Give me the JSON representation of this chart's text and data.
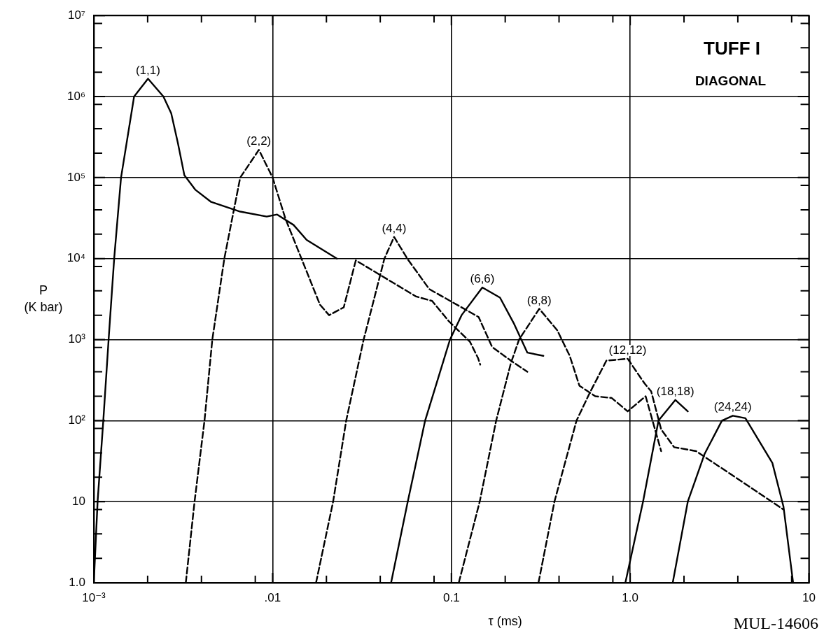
{
  "chart_data": {
    "type": "line",
    "title": "TUFF I",
    "subtitle": "DIAGONAL",
    "xlabel": "τ (ms)",
    "ylabel": "P (K bar)",
    "annotations": [
      "MUL-14606"
    ],
    "log": "xy",
    "grid": true,
    "legend": false,
    "marker": "none",
    "xlim": [
      0.001,
      10
    ],
    "ylim": [
      1,
      10000000
    ],
    "xticks": [
      {
        "value": 0.001,
        "label": "10⁻³"
      },
      {
        "value": 0.002,
        "label": null
      },
      {
        "value": 0.004,
        "label": null
      },
      {
        "value": 0.008,
        "label": null
      },
      {
        "value": 0.01,
        "label": ".01"
      },
      {
        "value": 0.02,
        "label": null
      },
      {
        "value": 0.04,
        "label": null
      },
      {
        "value": 0.08,
        "label": null
      },
      0.1,
      {
        "value": 0.2,
        "label": null
      },
      {
        "value": 0.4,
        "label": null
      },
      {
        "value": 0.8,
        "label": null
      },
      {
        "value": 1,
        "label": "1.0"
      },
      {
        "value": 2,
        "label": null
      },
      {
        "value": 4,
        "label": null
      },
      {
        "value": 8,
        "label": null
      },
      10
    ],
    "yticks": [
      {
        "value": 1,
        "label": "1.0"
      },
      {
        "value": 2,
        "label": null
      },
      {
        "value": 4,
        "label": null
      },
      {
        "value": 8,
        "label": null
      },
      10,
      {
        "value": 20,
        "label": null
      },
      {
        "value": 40,
        "label": null
      },
      {
        "value": 80,
        "label": null
      },
      {
        "value": 100,
        "label": "10²"
      },
      {
        "value": 200,
        "label": null
      },
      {
        "value": 400,
        "label": null
      },
      {
        "value": 800,
        "label": null
      },
      {
        "value": 1000,
        "label": "10³"
      },
      {
        "value": 2000,
        "label": null
      },
      {
        "value": 4000,
        "label": null
      },
      {
        "value": 8000,
        "label": null
      },
      {
        "value": 10000,
        "label": "10⁴"
      },
      {
        "value": 20000,
        "label": null
      },
      {
        "value": 40000,
        "label": null
      },
      {
        "value": 80000,
        "label": null
      },
      {
        "value": 100000,
        "label": "10⁵"
      },
      {
        "value": 200000,
        "label": null
      },
      {
        "value": 400000,
        "label": null
      },
      {
        "value": 800000,
        "label": null
      },
      {
        "value": 1000000,
        "label": "10⁶"
      },
      {
        "value": 2000000,
        "label": null
      },
      {
        "value": 4000000,
        "label": null
      },
      {
        "value": 8000000,
        "label": null
      },
      {
        "value": 10000000,
        "label": "10⁷"
      }
    ],
    "series": [
      {
        "name": "(1,1)",
        "color": "#000000",
        "line_style": "solid",
        "x": [
          0.001,
          0.00105,
          0.00113,
          0.00121,
          0.0013,
          0.00142,
          0.00168,
          0.00201,
          0.00245,
          0.00271,
          0.00295,
          0.00321,
          0.00369,
          0.00453,
          0.00659,
          0.00927,
          0.0106,
          0.0131,
          0.0155,
          0.0229
        ],
        "values": [
          1,
          10,
          100,
          1000,
          10000,
          100000,
          1000000,
          1660000,
          1000000,
          620000,
          270000,
          107000,
          71000,
          50000,
          38000,
          33000,
          35000,
          26000,
          17000,
          10000
        ]
      },
      {
        "name": "(2,2)",
        "color": "#000000",
        "line_style": "dashed",
        "x": [
          0.00327,
          0.00366,
          0.00416,
          0.0046,
          0.00537,
          0.00659,
          0.00838,
          0.01,
          0.0118,
          0.0145,
          0.0184,
          0.0207,
          0.025,
          0.0292,
          0.0635,
          0.078,
          0.0964,
          0.127,
          0.141,
          0.145
        ],
        "values": [
          1,
          10,
          100,
          1000,
          10000,
          100000,
          220000,
          100000,
          31000,
          10000,
          2700,
          2000,
          2500,
          9500,
          3400,
          3000,
          1700,
          940,
          590,
          490
        ]
      },
      {
        "name": "(4,4)",
        "color": "#000000",
        "line_style": "dashed",
        "x": [
          0.0175,
          0.0218,
          0.0258,
          0.0323,
          0.0422,
          0.0478,
          0.057,
          0.0752,
          0.142,
          0.169,
          0.215,
          0.266
        ],
        "values": [
          1,
          10,
          100,
          1000,
          10000,
          18500,
          9800,
          4200,
          1900,
          810,
          550,
          400
        ]
      },
      {
        "name": "(6,6)",
        "color": "#000000",
        "line_style": "solid",
        "x": [
          0.046,
          0.057,
          0.0713,
          0.0982,
          0.114,
          0.149,
          0.187,
          0.223,
          0.266,
          0.327
        ],
        "values": [
          1,
          10,
          100,
          1000,
          2000,
          4400,
          3300,
          1600,
          690,
          630
        ]
      },
      {
        "name": "(8,8)",
        "color": "#000000",
        "line_style": "dashed",
        "x": [
          0.11,
          0.144,
          0.178,
          0.215,
          0.239,
          0.31,
          0.391,
          0.459,
          0.52,
          0.638,
          0.789,
          0.968,
          1.22,
          1.49
        ],
        "values": [
          1,
          10,
          100,
          510,
          1000,
          2400,
          1300,
          630,
          270,
          200,
          190,
          130,
          200,
          42
        ]
      },
      {
        "name": "(12,12)",
        "color": "#000000",
        "line_style": "dashed",
        "x": [
          0.307,
          0.377,
          0.501,
          0.594,
          0.736,
          0.968,
          1.2,
          1.31,
          1.49,
          1.76,
          2.34,
          7.2
        ],
        "values": [
          1,
          10,
          100,
          220,
          550,
          580,
          290,
          230,
          78,
          47,
          42,
          8
        ]
      },
      {
        "name": "(18,18)",
        "color": "#000000",
        "line_style": "solid",
        "x": [
          0.94,
          1.18,
          1.44,
          1.79,
          2.1
        ],
        "values": [
          1,
          10,
          100,
          180,
          130
        ]
      },
      {
        "name": "(24,24)",
        "color": "#000000",
        "line_style": "solid",
        "x": [
          1.73,
          2.1,
          2.61,
          3.26,
          3.75,
          4.41,
          6.24,
          7.2,
          8.15
        ],
        "values": [
          1,
          10,
          39,
          100,
          115,
          107,
          30,
          8.7,
          1
        ]
      }
    ]
  }
}
